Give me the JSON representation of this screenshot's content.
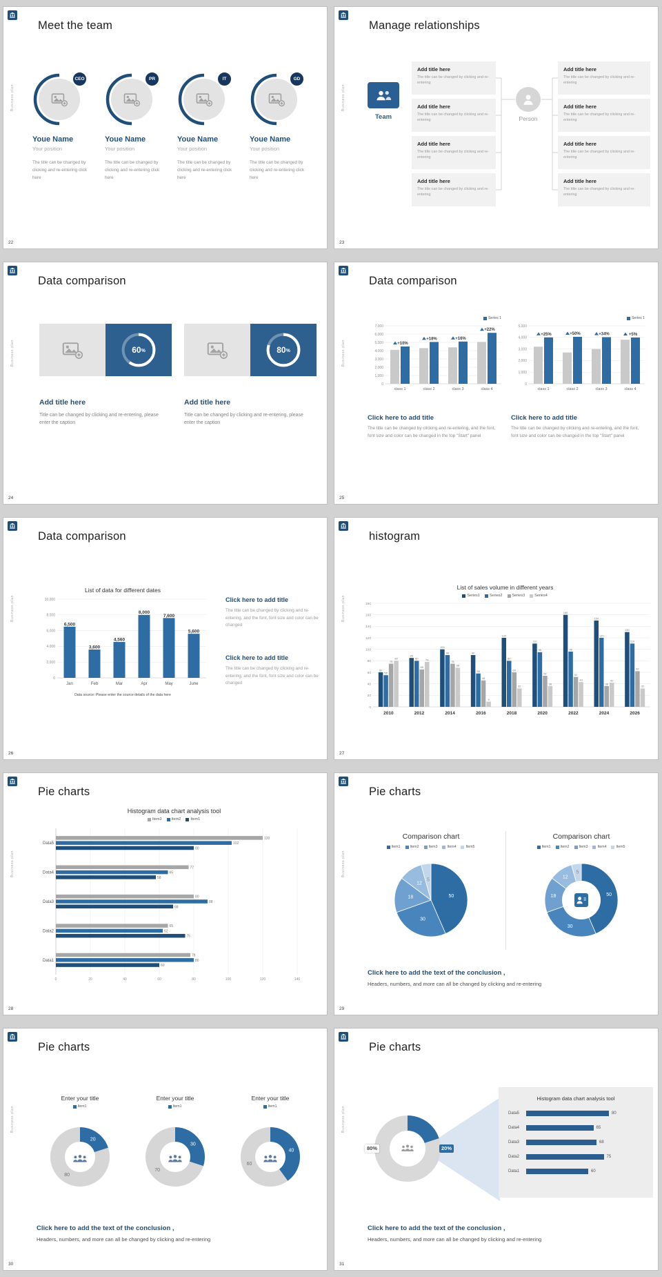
{
  "board": {
    "background": "#d2d2d2",
    "brand_text": "Business plan"
  },
  "colors": {
    "navy": "#1f4e79",
    "blue": "#2e6da4",
    "panel_blue": "#2d5f8f",
    "badge_navy": "#17375e",
    "bar_gray": "#a6a6a6",
    "bar_light": "#c9c9c9",
    "donut_gray": "#d6d6d6",
    "beam_blue": "#dbe5f1",
    "accent_text": "#1f4e79",
    "pie_blues": [
      "#2e6da4",
      "#4885bd",
      "#6fa0cf",
      "#97bcdf",
      "#c3d7ec"
    ]
  },
  "common": {
    "conclusion_title": "Click here to add the text of the conclusion ,",
    "conclusion_desc": "Headers, numbers, and more can all be changed by clicking and re-entering"
  },
  "slides": {
    "s22": {
      "number": "22",
      "title": "Meet the team",
      "members": [
        {
          "badge": "CEO",
          "name": "Youe Name",
          "position": "Your position",
          "desc": "The title can be changed by clicking and re-entering click here"
        },
        {
          "badge": "PR",
          "name": "Youe Name",
          "position": "Your position",
          "desc": "The title can be changed by clicking and re-entering click here"
        },
        {
          "badge": "IT",
          "name": "Youe Name",
          "position": "Your position",
          "desc": "The title can be changed by clicking and re-entering click here"
        },
        {
          "badge": "GD",
          "name": "Youe Name",
          "position": "Your position",
          "desc": "The title can be changed by clicking and re-entering click here"
        }
      ]
    },
    "s23": {
      "number": "23",
      "title": "Manage relationships",
      "team_label": "Team",
      "person_label": "Person",
      "left_boxes": [
        {
          "title": "Add title here",
          "desc": "The title can be changed by clicking and re-entering"
        },
        {
          "title": "Add title here",
          "desc": "The title can be changed by clicking and re-entering"
        },
        {
          "title": "Add title here",
          "desc": "The title can be changed by clicking and re-entering"
        },
        {
          "title": "Add title here",
          "desc": "The title can be changed by clicking and re-entering"
        }
      ],
      "right_boxes": [
        {
          "title": "Add title here",
          "desc": "The title can be changed by clicking and re-entering"
        },
        {
          "title": "Add title here",
          "desc": "The title can be changed by clicking and re-entering"
        },
        {
          "title": "Add title here",
          "desc": "The title can be changed by clicking and re-entering"
        },
        {
          "title": "Add title here",
          "desc": "The title can be changed by clicking and re-entering"
        }
      ]
    },
    "s24": {
      "number": "24",
      "title": "Data comparison",
      "panels": [
        {
          "percent": 60,
          "suffix": "%",
          "title": "Add title here",
          "desc": "Title can be changed by clicking and re-entering, please enter the caption"
        },
        {
          "percent": 80,
          "suffix": "%",
          "title": "Add title here",
          "desc": "Title can be changed by clicking and re-entering, please enter the caption"
        }
      ]
    },
    "s25": {
      "number": "25",
      "title": "Data comparison",
      "caption_title": "Click here to add title",
      "caption_desc": "The title can be changed by clicking and re-entering, and the font, font size and color can be changed in the top \"Start\" panel"
    },
    "s26": {
      "number": "26",
      "title": "Data comparison",
      "caption_title": "Click here to add title",
      "caption_desc": "The title can be changed by clicking and re-entering, and the font, font size and color can be changed"
    },
    "s27": {
      "number": "27",
      "title": "histogram"
    },
    "s28": {
      "number": "28",
      "title": "Pie charts"
    },
    "s29": {
      "number": "29",
      "title": "Pie charts"
    },
    "s30": {
      "number": "30",
      "title": "Pie charts"
    },
    "s31": {
      "number": "31",
      "title": "Pie charts"
    }
  },
  "chart_data": [
    {
      "id": "chart-25-left",
      "type": "bar",
      "slide": "25",
      "legend": [
        "Series 1"
      ],
      "categories": [
        "class 1",
        "class 2",
        "class 3",
        "class 4"
      ],
      "series": [
        {
          "name": "previous",
          "values": [
            4100,
            4300,
            4400,
            5050
          ]
        },
        {
          "name": "Series 1",
          "values": [
            4500,
            5050,
            5100,
            6150
          ]
        }
      ],
      "growth_labels": [
        "+10%",
        "+18%",
        "+16%",
        "+22%"
      ],
      "ylim": [
        0,
        7000
      ],
      "yticks": [
        "0",
        "1,000",
        "2,000",
        "3,000",
        "4,000",
        "5,000",
        "6,000",
        "7,000"
      ]
    },
    {
      "id": "chart-25-right",
      "type": "bar",
      "slide": "25",
      "legend": [
        "Series 1"
      ],
      "categories": [
        "class 1",
        "class 2",
        "class 3",
        "class 4"
      ],
      "series": [
        {
          "name": "previous",
          "values": [
            3200,
            2700,
            3000,
            3800
          ]
        },
        {
          "name": "Series 1",
          "values": [
            4000,
            4050,
            4020,
            3990
          ]
        }
      ],
      "growth_labels": [
        "+25%",
        "+50%",
        "+34%",
        "+5%"
      ],
      "ylim": [
        0,
        5000
      ],
      "yticks": [
        "0",
        "1,000",
        "2,000",
        "3,000",
        "4,000",
        "5,000"
      ]
    },
    {
      "id": "chart-26",
      "type": "bar",
      "slide": "26",
      "title": "List of data for different dates",
      "categories": [
        "Jan",
        "Feb",
        "Mar",
        "Apr",
        "May",
        "June"
      ],
      "values": [
        6500,
        3600,
        4560,
        8000,
        7600,
        5600
      ],
      "value_labels": [
        "6,500",
        "3,600",
        "4,560",
        "8,000",
        "7,600",
        "5,600"
      ],
      "ylim": [
        0,
        10000
      ],
      "yticks": [
        "0",
        "2,000",
        "4,000",
        "6,000",
        "8,000",
        "10,000"
      ],
      "footnote": "Data source: Please enter the source details of the data here"
    },
    {
      "id": "chart-27",
      "type": "bar",
      "slide": "27",
      "title": "List of sales volume in different years",
      "legend": [
        "Series1",
        "Series2",
        "Series3",
        "Series4"
      ],
      "categories": [
        "2010",
        "2012",
        "2014",
        "2016",
        "2018",
        "2020",
        "2022",
        "2024",
        "2026"
      ],
      "series": [
        {
          "name": "Series1",
          "values": [
            60,
            85,
            100,
            90,
            120,
            110,
            160,
            150,
            130
          ]
        },
        {
          "name": "Series2",
          "values": [
            55,
            80,
            90,
            58,
            80,
            95,
            96,
            120,
            110
          ]
        },
        {
          "name": "Series3",
          "values": [
            75,
            65,
            75,
            46,
            60,
            54,
            52,
            36,
            62
          ]
        },
        {
          "name": "Series4",
          "values": [
            80,
            78,
            68,
            9,
            32,
            36,
            43,
            42,
            32
          ]
        }
      ],
      "ylim": [
        0,
        180
      ],
      "yticks": [
        0,
        20,
        40,
        60,
        80,
        100,
        120,
        140,
        160,
        180
      ]
    },
    {
      "id": "chart-28",
      "type": "bar-horizontal",
      "slide": "28",
      "title": "Histogram data chart analysis tool",
      "legend": [
        "Item3",
        "Item2",
        "Item1"
      ],
      "categories": [
        "Data5",
        "Data4",
        "Data3",
        "Data2",
        "Data1"
      ],
      "series": [
        {
          "name": "Item3",
          "values": [
            120,
            77,
            80,
            65,
            78
          ]
        },
        {
          "name": "Item2",
          "values": [
            102,
            65,
            88,
            62,
            80
          ]
        },
        {
          "name": "Item1",
          "values": [
            80,
            58,
            68,
            75,
            60
          ]
        }
      ],
      "xlim": [
        0,
        140
      ],
      "xticks": [
        0,
        20,
        40,
        60,
        80,
        100,
        120,
        140
      ]
    },
    {
      "id": "chart-29-pie",
      "type": "pie",
      "slide": "29",
      "title": "Comparison chart",
      "legend": [
        "Item1",
        "Item2",
        "Item3",
        "Item4",
        "Item5"
      ],
      "values": [
        50,
        30,
        18,
        12,
        5
      ]
    },
    {
      "id": "chart-29-donut",
      "type": "donut",
      "slide": "29",
      "title": "Comparison chart",
      "legend": [
        "Item1",
        "Item2",
        "Item3",
        "Item4",
        "Item5"
      ],
      "values": [
        50,
        30,
        18,
        12,
        5
      ]
    },
    {
      "id": "chart-30-donuts",
      "type": "donut",
      "slide": "30",
      "charts": [
        {
          "title": "Enter your title",
          "legend": [
            "Item1"
          ],
          "values": [
            20,
            80
          ]
        },
        {
          "title": "Enter your title",
          "legend": [
            "Item1"
          ],
          "values": [
            30,
            70
          ]
        },
        {
          "title": "Enter your title",
          "legend": [
            "Item1"
          ],
          "values": [
            40,
            60
          ]
        }
      ]
    },
    {
      "id": "chart-31-donut",
      "type": "donut",
      "slide": "31",
      "values": [
        20,
        80
      ],
      "labels": [
        "20%",
        "80%"
      ]
    },
    {
      "id": "chart-31-bars",
      "type": "bar-horizontal",
      "slide": "31",
      "title": "Histogram data chart analysis tool",
      "categories": [
        "Data5",
        "Data4",
        "Data3",
        "Data2",
        "Data1"
      ],
      "values": [
        80,
        65,
        68,
        75,
        60
      ]
    }
  ]
}
